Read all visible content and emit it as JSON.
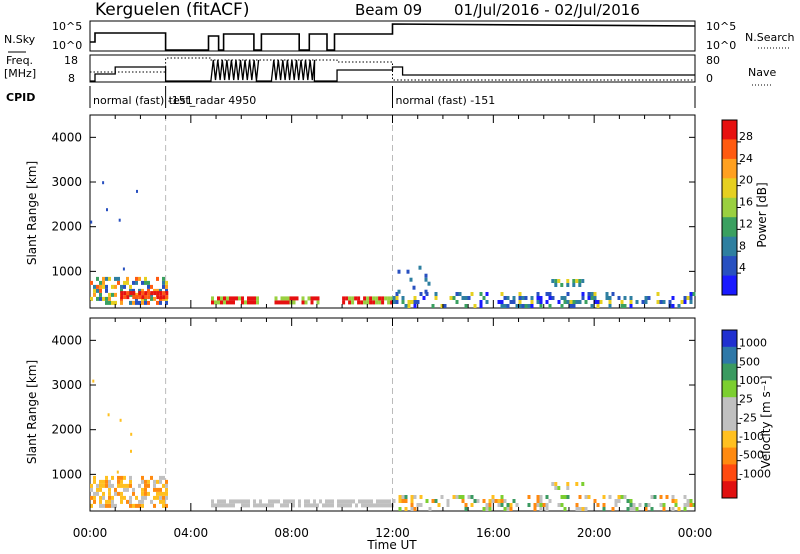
{
  "header": {
    "site": "Kerguelen (fitACF)",
    "beam": "Beam 09",
    "dates": "01/Jul/2016 - 02/Jul/2016"
  },
  "sky_panel": {
    "left_label": "N.Sky",
    "left_ticks": [
      "10^5",
      "10^0"
    ],
    "right_label": "N.Search",
    "right_ticks": [
      "10^5",
      "10^0"
    ]
  },
  "freq_panel": {
    "left_label_line1": "Freq.",
    "left_label_line2": "[MHz]",
    "left_ticks": [
      "18",
      "8"
    ],
    "right_label": "Nave",
    "right_ticks": [
      "80",
      "0"
    ]
  },
  "cpid": {
    "label": "CPID",
    "segments": [
      {
        "start": 0.0,
        "end": 3.0,
        "label": "normal (fast) -151"
      },
      {
        "start": 3.0,
        "end": 12.0,
        "label": "test_radar 4950"
      },
      {
        "start": 12.0,
        "end": 24.0,
        "label": "normal (fast) -151"
      }
    ]
  },
  "colors": {
    "power_scale": [
      "#1a1aff",
      "#2850c0",
      "#2e7fa0",
      "#3aa060",
      "#9ad040",
      "#e6d020",
      "#ffa020",
      "#ff5a10",
      "#e61010"
    ],
    "velocity_scale": [
      "#2030d0",
      "#2e78a8",
      "#3a9a60",
      "#7ccf30",
      "#c0c0c0",
      "#c0c0c0",
      "#ffc020",
      "#ff8a10",
      "#ff4a10",
      "#e01010"
    ]
  },
  "chart_data": [
    {
      "type": "heatmap",
      "name": "power",
      "x_ticks": [
        "00:00",
        "04:00",
        "08:00",
        "12:00",
        "16:00",
        "20:00",
        "00:00"
      ],
      "xlim_hours": [
        0,
        24
      ],
      "ylabel": "Slant Range [km]",
      "y_ticks": [
        1000,
        2000,
        3000,
        4000
      ],
      "ylim_km": [
        180,
        4500
      ],
      "colorbar_label": "Power [dB]",
      "colorbar_ticks": [
        "4",
        "8",
        "12",
        "16",
        "20",
        "24",
        "28"
      ],
      "colorbar_range": [
        0,
        32
      ],
      "vertical_markers_hours": [
        3.0,
        12.0
      ],
      "regions": [
        {
          "t0": 0.0,
          "t1": 3.0,
          "r0": 250,
          "r1": 800,
          "values": [
            6,
            10,
            14,
            18,
            22,
            26
          ],
          "density": 0.55
        },
        {
          "t0": 1.2,
          "t1": 3.0,
          "r0": 380,
          "r1": 520,
          "values": [
            28,
            30
          ],
          "density": 0.9
        },
        {
          "t0": 4.8,
          "t1": 6.7,
          "r0": 260,
          "r1": 380,
          "values": [
            30,
            16
          ],
          "density": 0.8
        },
        {
          "t0": 7.2,
          "t1": 9.0,
          "r0": 260,
          "r1": 380,
          "values": [
            30,
            16
          ],
          "density": 0.8
        },
        {
          "t0": 10.0,
          "t1": 12.0,
          "r0": 260,
          "r1": 380,
          "values": [
            30,
            16
          ],
          "density": 0.9
        },
        {
          "t0": 12.0,
          "t1": 24.0,
          "r0": 180,
          "r1": 450,
          "values": [
            2,
            4,
            6,
            8,
            14,
            20
          ],
          "density": 0.35
        },
        {
          "t0": 12.2,
          "t1": 13.5,
          "r0": 500,
          "r1": 1100,
          "values": [
            4,
            8
          ],
          "density": 0.15
        },
        {
          "t0": 18.3,
          "t1": 19.5,
          "r0": 650,
          "r1": 780,
          "values": [
            8,
            14,
            20
          ],
          "density": 0.5
        }
      ]
    },
    {
      "type": "heatmap",
      "name": "velocity",
      "x_ticks": [
        "00:00",
        "04:00",
        "08:00",
        "12:00",
        "16:00",
        "20:00",
        "00:00"
      ],
      "xlabel": "Time UT",
      "xlim_hours": [
        0,
        24
      ],
      "ylabel": "Slant Range [km]",
      "y_ticks": [
        1000,
        2000,
        3000,
        4000
      ],
      "ylim_km": [
        180,
        4500
      ],
      "colorbar_label": "Velocity [m s⁻¹]",
      "colorbar_ticks": [
        "1000",
        "500",
        "100",
        "25",
        "-25",
        "-100",
        "-500",
        "-1000"
      ],
      "vertical_markers_hours": [
        3.0,
        12.0
      ],
      "regions": [
        {
          "t0": 0.0,
          "t1": 3.0,
          "r0": 250,
          "r1": 900,
          "values": [
            6,
            7,
            6,
            5
          ],
          "density": 0.6
        },
        {
          "t0": 4.8,
          "t1": 12.0,
          "r0": 260,
          "r1": 380,
          "values": [
            4
          ],
          "density": 0.75
        },
        {
          "t0": 12.0,
          "t1": 24.0,
          "r0": 180,
          "r1": 450,
          "values": [
            4,
            5,
            6,
            7,
            2,
            3
          ],
          "density": 0.35
        },
        {
          "t0": 18.3,
          "t1": 19.5,
          "r0": 650,
          "r1": 780,
          "values": [
            3,
            4,
            6
          ],
          "density": 0.5
        }
      ]
    }
  ]
}
